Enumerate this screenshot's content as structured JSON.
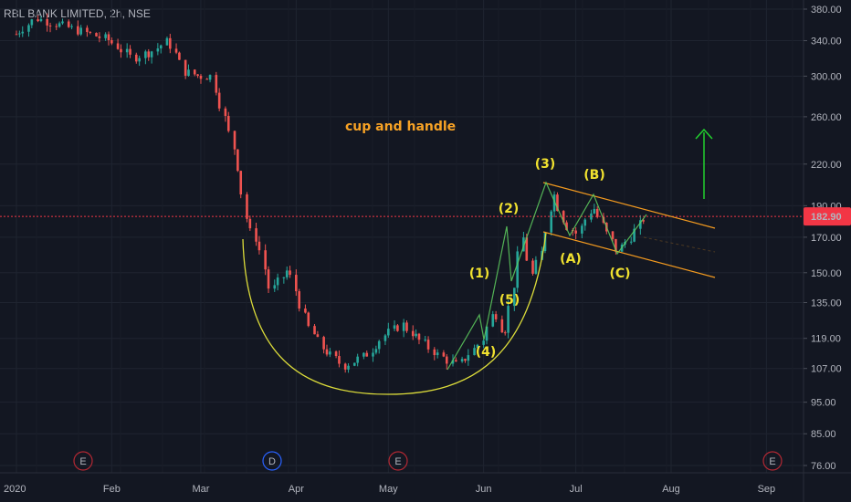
{
  "header": {
    "title": "RBL BANK LIMITED, 2h, NSE"
  },
  "price_tag": {
    "value": "182.90",
    "color": "#f23645"
  },
  "colors": {
    "up": "#26a69a",
    "down": "#ef5350",
    "cup": "#dcdc3a",
    "channel": "#f39a1f",
    "wave_label": "#f0e12f",
    "arrow": "#22d12e",
    "text_orange": "#f7a225"
  },
  "chart_data": {
    "type": "candlestick",
    "title": "RBL BANK LIMITED, 2h, NSE",
    "y_scale": "log",
    "y_ticks": [
      380,
      340,
      300,
      260,
      220,
      190,
      170,
      150,
      135,
      119,
      107,
      95,
      85,
      76
    ],
    "y_tick_labels": [
      "380.00",
      "340.00",
      "300.00",
      "260.00",
      "220.00",
      "190.00",
      "170.00",
      "150.00",
      "135.00",
      "119.00",
      "107.00",
      "95.00",
      "85.00",
      "76.00"
    ],
    "x_ticks": [
      "2020",
      "Feb",
      "Mar",
      "Apr",
      "May",
      "Jun",
      "Jul",
      "Aug",
      "Sep"
    ],
    "x_tick_dates": [
      "2020-01-01",
      "2020-02-01",
      "2020-03-01",
      "2020-04-01",
      "2020-05-01",
      "2020-06-01",
      "2020-07-01",
      "2020-08-01",
      "2020-09-01"
    ],
    "last_price": 182.9,
    "price_path": [
      [
        "2020-01-01",
        348
      ],
      [
        "2020-01-08",
        368
      ],
      [
        "2020-01-15",
        360
      ],
      [
        "2020-01-22",
        352
      ],
      [
        "2020-02-01",
        340
      ],
      [
        "2020-02-08",
        320
      ],
      [
        "2020-02-15",
        328
      ],
      [
        "2020-02-20",
        340
      ],
      [
        "2020-02-25",
        305
      ],
      [
        "2020-03-01",
        300
      ],
      [
        "2020-03-05",
        300
      ],
      [
        "2020-03-09",
        260
      ],
      [
        "2020-03-13",
        225
      ],
      [
        "2020-03-17",
        175
      ],
      [
        "2020-03-20",
        168
      ],
      [
        "2020-03-24",
        140
      ],
      [
        "2020-03-30",
        152
      ],
      [
        "2020-04-05",
        125
      ],
      [
        "2020-04-10",
        115
      ],
      [
        "2020-04-17",
        108
      ],
      [
        "2020-04-24",
        112
      ],
      [
        "2020-04-30",
        120
      ],
      [
        "2020-05-06",
        125
      ],
      [
        "2020-05-12",
        118
      ],
      [
        "2020-05-18",
        112
      ],
      [
        "2020-05-24",
        108
      ],
      [
        "2020-06-01",
        118
      ],
      [
        "2020-06-05",
        132
      ],
      [
        "2020-06-08",
        120
      ],
      [
        "2020-06-11",
        140
      ],
      [
        "2020-06-14",
        172
      ],
      [
        "2020-06-17",
        148
      ],
      [
        "2020-06-20",
        160
      ],
      [
        "2020-06-24",
        200
      ],
      [
        "2020-06-28",
        178
      ],
      [
        "2020-07-02",
        172
      ],
      [
        "2020-07-07",
        190
      ],
      [
        "2020-07-11",
        175
      ],
      [
        "2020-07-15",
        162
      ],
      [
        "2020-07-19",
        170
      ],
      [
        "2020-07-24",
        182.9
      ]
    ],
    "annotations": {
      "pattern_label": "cup and handle",
      "waves": [
        "(1)",
        "(2)",
        "(3)",
        "(4)",
        "(5)",
        "(A)",
        "(B)",
        "(C)"
      ]
    },
    "event_markers": [
      "E",
      "D",
      "E",
      "E"
    ],
    "grid": true,
    "legend": "none"
  }
}
